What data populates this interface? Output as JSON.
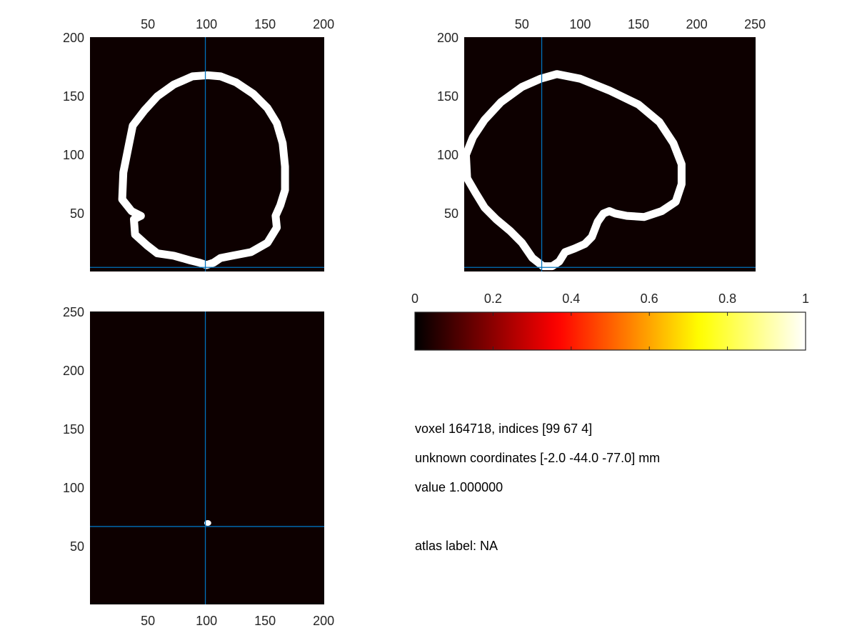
{
  "chart_data": [
    {
      "type": "heatmap",
      "panel": "top-left",
      "xaxis_location": "top",
      "xlim": [
        0.5,
        200.5
      ],
      "ylim": [
        0.5,
        200.5
      ],
      "xticks": [
        50,
        100,
        150,
        200
      ],
      "yticks": [
        50,
        100,
        150,
        200
      ],
      "background_value": 0,
      "crosshair": {
        "x": 99,
        "y": 4
      },
      "outline_value": 1,
      "outline": [
        [
          101,
          168
        ],
        [
          112,
          167
        ],
        [
          125,
          162
        ],
        [
          140,
          152
        ],
        [
          152,
          140
        ],
        [
          160,
          127
        ],
        [
          165,
          110
        ],
        [
          167,
          90
        ],
        [
          167,
          70
        ],
        [
          163,
          57
        ],
        [
          159,
          48
        ],
        [
          160,
          38
        ],
        [
          152,
          25
        ],
        [
          138,
          17
        ],
        [
          122,
          14
        ],
        [
          112,
          12
        ],
        [
          106,
          8
        ],
        [
          100,
          6
        ],
        [
          94,
          8
        ],
        [
          86,
          10
        ],
        [
          72,
          14
        ],
        [
          58,
          16
        ],
        [
          49,
          23
        ],
        [
          39,
          32
        ],
        [
          38,
          45
        ],
        [
          44,
          48
        ],
        [
          36,
          52
        ],
        [
          28,
          62
        ],
        [
          29,
          85
        ],
        [
          34,
          110
        ],
        [
          37,
          125
        ],
        [
          47,
          138
        ],
        [
          58,
          150
        ],
        [
          72,
          160
        ],
        [
          88,
          167
        ]
      ]
    },
    {
      "type": "heatmap",
      "panel": "top-right",
      "xaxis_location": "top",
      "xlim": [
        0.5,
        250.5
      ],
      "ylim": [
        0.5,
        200.5
      ],
      "xticks": [
        50,
        100,
        150,
        200,
        250
      ],
      "yticks": [
        50,
        100,
        150,
        200
      ],
      "background_value": 0,
      "crosshair": {
        "x": 67,
        "y": 4
      },
      "outline_value": 1,
      "outline": [
        [
          80,
          169
        ],
        [
          100,
          165
        ],
        [
          125,
          155
        ],
        [
          150,
          143
        ],
        [
          168,
          128
        ],
        [
          180,
          110
        ],
        [
          187,
          92
        ],
        [
          187,
          75
        ],
        [
          182,
          60
        ],
        [
          170,
          52
        ],
        [
          155,
          47
        ],
        [
          140,
          48
        ],
        [
          130,
          50
        ],
        [
          125,
          52
        ],
        [
          120,
          50
        ],
        [
          115,
          43
        ],
        [
          110,
          30
        ],
        [
          104,
          24
        ],
        [
          95,
          20
        ],
        [
          87,
          17
        ],
        [
          82,
          9
        ],
        [
          76,
          5
        ],
        [
          68,
          5
        ],
        [
          59,
          12
        ],
        [
          50,
          25
        ],
        [
          40,
          35
        ],
        [
          28,
          45
        ],
        [
          18,
          55
        ],
        [
          10,
          68
        ],
        [
          3,
          80
        ],
        [
          2,
          100
        ],
        [
          8,
          115
        ],
        [
          18,
          130
        ],
        [
          32,
          145
        ],
        [
          50,
          158
        ],
        [
          66,
          165
        ]
      ]
    },
    {
      "type": "heatmap",
      "panel": "bottom-left",
      "xaxis_location": "bottom",
      "xlim": [
        0.5,
        200.5
      ],
      "ylim": [
        0.5,
        250.5
      ],
      "xticks": [
        50,
        100,
        150,
        200
      ],
      "yticks": [
        50,
        100,
        150,
        200,
        250
      ],
      "background_value": 0,
      "crosshair": {
        "x": 99,
        "y": 67
      },
      "blob": {
        "x": 101,
        "y": 70,
        "value": 1
      }
    },
    {
      "type": "colorbar",
      "panel": "colorbar",
      "colormap": "hot",
      "clim": [
        0,
        1
      ],
      "ticks": [
        0,
        0.2,
        0.4,
        0.6,
        0.8,
        1
      ],
      "tick_labels": [
        "0",
        "0.2",
        "0.4",
        "0.6",
        "0.8",
        "1"
      ]
    }
  ],
  "colors": {
    "background": "#0d0000",
    "crosshair": "#0072bd",
    "outline": "#ffffff",
    "axis": "#262626"
  },
  "info": {
    "voxel_line": "voxel 164718, indices [99 67 4]",
    "coordinates_line": "unknown coordinates [-2.0 -44.0 -77.0] mm",
    "value_line": "value 1.000000",
    "atlas_line": "atlas label: NA"
  }
}
